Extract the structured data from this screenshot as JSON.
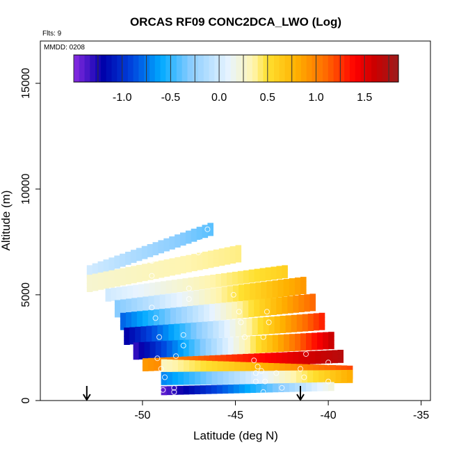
{
  "chart_data": {
    "type": "heatmap",
    "title": "ORCAS RF09 CONC2DCA_LWO (Log)",
    "annotations": {
      "flights": "Flts: 9",
      "date": "MMDD: 0208"
    },
    "xlabel": "Latitude (deg N)",
    "ylabel": "Altitude (m)",
    "xlim": [
      -55.5,
      -34.5
    ],
    "ylim": [
      0,
      17000
    ],
    "x_ticks": [
      -50,
      -45,
      -40,
      -35
    ],
    "x_tick_labels": [
      "-50",
      "-45",
      "-40",
      "-35"
    ],
    "y_ticks": [
      0,
      5000,
      10000,
      15000
    ],
    "y_tick_labels": [
      "0",
      "5000",
      "10000",
      "15000"
    ],
    "colorbar": {
      "range": [
        -1.5,
        1.85
      ],
      "ticks": [
        -1.0,
        -0.5,
        0.0,
        0.5,
        1.0,
        1.5
      ],
      "tick_labels": [
        "-1.0",
        "-0.5",
        "0.0",
        "0.5",
        "1.0",
        "1.5"
      ],
      "stops": [
        {
          "v": -1.5,
          "color": "#8a2be2"
        },
        {
          "v": -1.2,
          "color": "#0000aa"
        },
        {
          "v": -0.9,
          "color": "#0044dd"
        },
        {
          "v": -0.6,
          "color": "#00aaff"
        },
        {
          "v": -0.3,
          "color": "#88ccff"
        },
        {
          "v": 0.1,
          "color": "#e8f4ff"
        },
        {
          "v": 0.35,
          "color": "#fff5b0"
        },
        {
          "v": 0.5,
          "color": "#ffe030"
        },
        {
          "v": 0.8,
          "color": "#ffb000"
        },
        {
          "v": 1.1,
          "color": "#ff6a00"
        },
        {
          "v": 1.4,
          "color": "#ff0000"
        },
        {
          "v": 1.6,
          "color": "#cc0000"
        },
        {
          "v": 1.85,
          "color": "#9b1c1c"
        }
      ]
    },
    "bands": [
      {
        "lat0": -53.0,
        "alt0": 6100,
        "lat1": -46.5,
        "alt1": 8100,
        "width": 600,
        "v0": 0.0,
        "v1": -0.4
      },
      {
        "lat0": -53.0,
        "alt0": 5500,
        "lat1": -45.0,
        "alt1": 6900,
        "width": 700,
        "v0": 0.25,
        "v1": 0.4
      },
      {
        "lat0": -52.0,
        "alt0": 5000,
        "lat1": -42.5,
        "alt1": 6100,
        "width": 600,
        "v0": 0.0,
        "v1": 0.6
      },
      {
        "lat0": -51.5,
        "alt0": 4300,
        "lat1": -41.5,
        "alt1": 5400,
        "width": 700,
        "v0": -0.3,
        "v1": 0.9
      },
      {
        "lat0": -51.2,
        "alt0": 3700,
        "lat1": -41.0,
        "alt1": 4600,
        "width": 700,
        "v0": -0.8,
        "v1": 1.1
      },
      {
        "lat0": -51.0,
        "alt0": 3000,
        "lat1": -40.5,
        "alt1": 3700,
        "width": 700,
        "v0": -1.2,
        "v1": 1.3
      },
      {
        "lat0": -50.5,
        "alt0": 2300,
        "lat1": -40.0,
        "alt1": 2800,
        "width": 700,
        "v0": -1.3,
        "v1": 1.6
      },
      {
        "lat0": -50.0,
        "alt0": 1700,
        "lat1": -39.5,
        "alt1": 2100,
        "width": 600,
        "v0": 0.9,
        "v1": 1.7
      },
      {
        "lat0": -49.0,
        "alt0": 1600,
        "lat1": -39.0,
        "alt1": 1300,
        "width": 500,
        "v0": 0.3,
        "v1": 1.2
      },
      {
        "lat0": -49.0,
        "alt0": 1000,
        "lat1": -39.0,
        "alt1": 1100,
        "width": 500,
        "v0": -0.7,
        "v1": 0.8
      },
      {
        "lat0": -49.0,
        "alt0": 500,
        "lat1": -40.0,
        "alt1": 700,
        "width": 450,
        "v0": -1.4,
        "v1": 0.2
      }
    ],
    "flight_track_points": [
      [
        -46.5,
        8100
      ],
      [
        -46.8,
        7500
      ],
      [
        -47.0,
        7000
      ],
      [
        -49.5,
        6600
      ],
      [
        -49.5,
        5900
      ],
      [
        -47.5,
        5300
      ],
      [
        -47.5,
        4800
      ],
      [
        -49.5,
        4400
      ],
      [
        -49.3,
        3900
      ],
      [
        -49.1,
        3000
      ],
      [
        -47.8,
        3100
      ],
      [
        -47.8,
        2600
      ],
      [
        -48.2,
        2100
      ],
      [
        -49.2,
        2000
      ],
      [
        -49.0,
        1500
      ],
      [
        -48.8,
        1100
      ],
      [
        -48.9,
        500
      ],
      [
        -48.3,
        400
      ],
      [
        -48.3,
        600
      ],
      [
        -45.1,
        5000
      ],
      [
        -44.8,
        4200
      ],
      [
        -44.7,
        3700
      ],
      [
        -44.5,
        3000
      ],
      [
        -43.5,
        3000
      ],
      [
        -43.3,
        4200
      ],
      [
        -43.2,
        3700
      ],
      [
        -44.0,
        1900
      ],
      [
        -43.8,
        1600
      ],
      [
        -43.6,
        1400
      ],
      [
        -43.9,
        1300
      ],
      [
        -42.8,
        1300
      ],
      [
        -43.9,
        900
      ],
      [
        -43.4,
        900
      ],
      [
        -41.2,
        2200
      ],
      [
        -41.5,
        1500
      ],
      [
        -41.3,
        1100
      ],
      [
        -40.0,
        1800
      ],
      [
        -40.0,
        900
      ],
      [
        -42.5,
        600
      ],
      [
        -43.5,
        400
      ]
    ],
    "markers": [
      {
        "type": "arrow-down",
        "lat": -53.0,
        "alt": 0
      },
      {
        "type": "arrow-down",
        "lat": -41.5,
        "alt": 0
      }
    ]
  }
}
